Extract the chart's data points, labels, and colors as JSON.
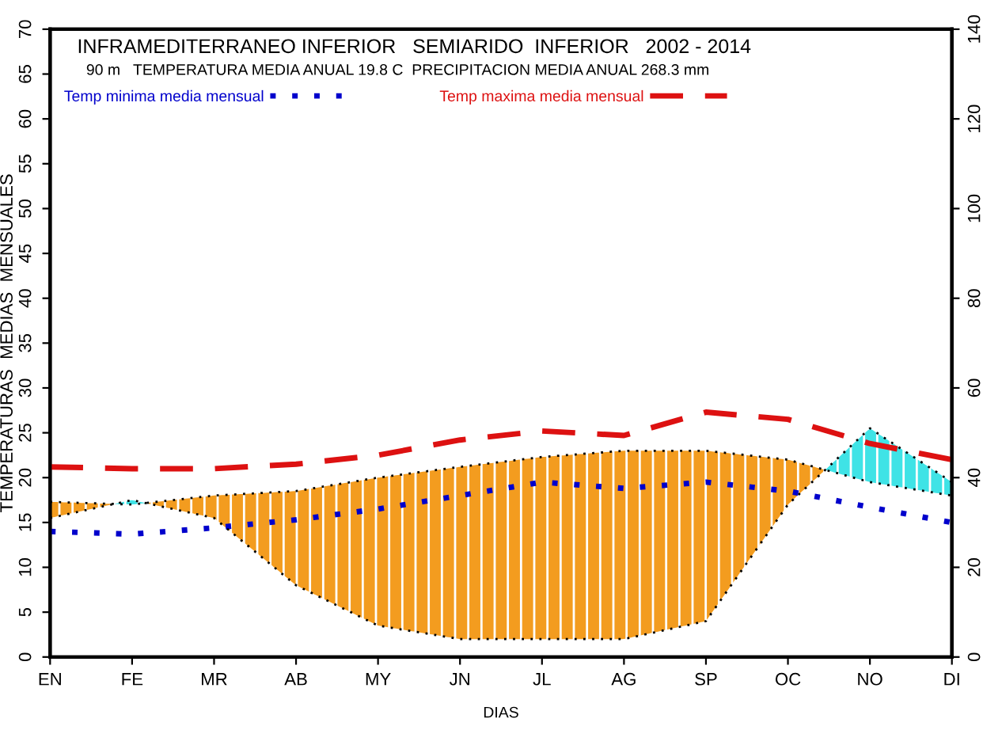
{
  "chart_data": {
    "type": "line",
    "title": "INFRAMEDITERRANEO INFERIOR   SEMIARIDO  INFERIOR   2002 - 2014",
    "subtitle": "90 m   TEMPERATURA MEDIA ANUAL 19.8 C  PRECIPITACION MEDIA ANUAL 268.3 mm",
    "xlabel": "DIAS",
    "ylabel": "TEMPERATURAS  MEDIAS  MENSUALES",
    "categories": [
      "EN",
      "FE",
      "MR",
      "AB",
      "MY",
      "JN",
      "JL",
      "AG",
      "SP",
      "OC",
      "NO",
      "DI"
    ],
    "series": [
      {
        "color": "#000000",
        "line_style": "dotted",
        "values": [
          17.3,
          17,
          18,
          18.5,
          20,
          21.2,
          22.3,
          23,
          23,
          22,
          19.5,
          18
        ]
      },
      {
        "color": "#000000",
        "line_style": "dotted",
        "axis": "y2",
        "values": [
          31,
          35,
          31,
          16,
          7,
          4,
          4,
          4,
          8,
          34,
          51,
          39
        ]
      },
      {
        "name": "Temp minima media mensual",
        "color": "#0000cc",
        "line_style": "dotted",
        "values": [
          14,
          13.7,
          14.4,
          15.3,
          16.5,
          18,
          19.5,
          18.8,
          19.5,
          18.5,
          16.7,
          15
        ]
      },
      {
        "name": "Temp maxima media mensual",
        "color": "#dd1111",
        "line_style": "dashed",
        "values": [
          21.2,
          21,
          21,
          21.5,
          22.5,
          24.2,
          25.2,
          24.7,
          27.3,
          26.5,
          23.8,
          22
        ]
      }
    ],
    "ylim": [
      0,
      70
    ],
    "yticks": [
      0,
      5,
      10,
      15,
      20,
      25,
      30,
      35,
      40,
      45,
      50,
      55,
      60,
      65,
      70
    ],
    "y2lim": [
      0,
      140
    ],
    "y2ticks": [
      0,
      20,
      40,
      60,
      80,
      100,
      120,
      140
    ],
    "grid": false,
    "legend": "top",
    "marker": "none"
  }
}
